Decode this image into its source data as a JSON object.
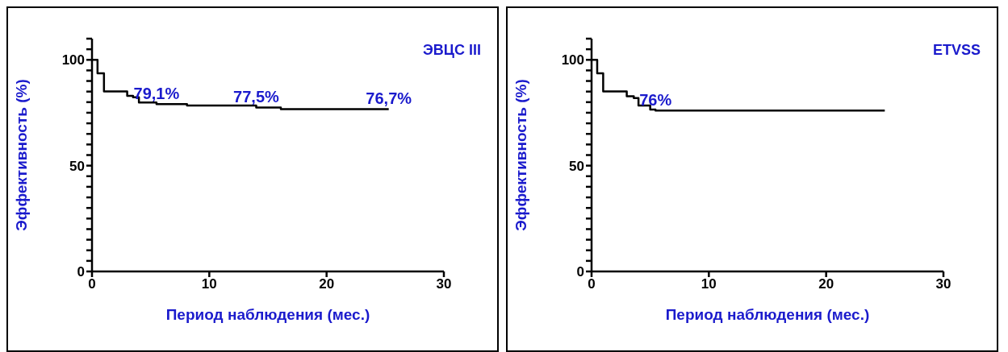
{
  "chart_data": [
    {
      "type": "step",
      "xlabel": "Период наблюдения (мес.)",
      "ylabel": "Эффективность (%)",
      "xlim": [
        0,
        30
      ],
      "xticks": [
        0,
        10,
        20,
        30
      ],
      "ylim": [
        0,
        110
      ],
      "yticks": [
        0,
        {
          "value": 5,
          "label": null
        },
        {
          "value": 10,
          "label": null
        },
        {
          "value": 15,
          "label": null
        },
        {
          "value": 20,
          "label": null
        },
        {
          "value": 25,
          "label": null
        },
        {
          "value": 30,
          "label": null
        },
        {
          "value": 35,
          "label": null
        },
        {
          "value": 40,
          "label": null
        },
        {
          "value": 45,
          "label": null
        },
        50,
        {
          "value": 55,
          "label": null
        },
        {
          "value": 60,
          "label": null
        },
        {
          "value": 65,
          "label": null
        },
        {
          "value": 70,
          "label": null
        },
        {
          "value": 75,
          "label": null
        },
        {
          "value": 80,
          "label": null
        },
        {
          "value": 85,
          "label": null
        },
        {
          "value": 90,
          "label": null
        },
        {
          "value": 95,
          "label": null
        },
        100,
        {
          "value": 105,
          "label": null
        },
        {
          "value": 110,
          "label": null
        }
      ],
      "grid": false,
      "legend": false,
      "series": [
        {
          "color": "#000000",
          "x": [
            0,
            0.47,
            1.02,
            3.0,
            3.5,
            4.0,
            5.5,
            8.1,
            14.0,
            16.1,
            25.3
          ],
          "values": [
            100,
            93.6,
            85.1,
            83.0,
            82.3,
            79.8,
            79.1,
            78.4,
            77.5,
            76.7,
            76.7
          ]
        }
      ],
      "annotations": [
        "ЭВЦС III",
        {
          "text": "79,1%",
          "x": 5.5,
          "y": 79.1
        },
        {
          "text": "77,5%",
          "x": 14.0,
          "y": 77.5
        },
        {
          "text": "76,7%",
          "x": 25.3,
          "y": 76.7
        }
      ]
    },
    {
      "type": "step",
      "xlabel": "Период наблюдения (мес.)",
      "ylabel": "Эффективность (%)",
      "xlim": [
        0,
        30
      ],
      "xticks": [
        0,
        10,
        20,
        30
      ],
      "ylim": [
        0,
        110
      ],
      "yticks": [
        0,
        {
          "value": 5,
          "label": null
        },
        {
          "value": 10,
          "label": null
        },
        {
          "value": 15,
          "label": null
        },
        {
          "value": 20,
          "label": null
        },
        {
          "value": 25,
          "label": null
        },
        {
          "value": 30,
          "label": null
        },
        {
          "value": 35,
          "label": null
        },
        {
          "value": 40,
          "label": null
        },
        {
          "value": 45,
          "label": null
        },
        50,
        {
          "value": 55,
          "label": null
        },
        {
          "value": 60,
          "label": null
        },
        {
          "value": 65,
          "label": null
        },
        {
          "value": 70,
          "label": null
        },
        {
          "value": 75,
          "label": null
        },
        {
          "value": 80,
          "label": null
        },
        {
          "value": 85,
          "label": null
        },
        {
          "value": 90,
          "label": null
        },
        {
          "value": 95,
          "label": null
        },
        100,
        {
          "value": 105,
          "label": null
        },
        {
          "value": 110,
          "label": null
        }
      ],
      "grid": false,
      "legend": false,
      "series": [
        {
          "color": "#000000",
          "x": [
            0,
            0.48,
            0.99,
            3.0,
            3.6,
            4.0,
            5.0,
            5.45,
            25.0
          ],
          "values": [
            100,
            93.6,
            85.1,
            82.8,
            81.9,
            78.4,
            76.5,
            76,
            76
          ]
        }
      ],
      "annotations": [
        "ETVSS",
        {
          "text": "76%",
          "x": 5.45,
          "y": 76
        }
      ]
    }
  ]
}
